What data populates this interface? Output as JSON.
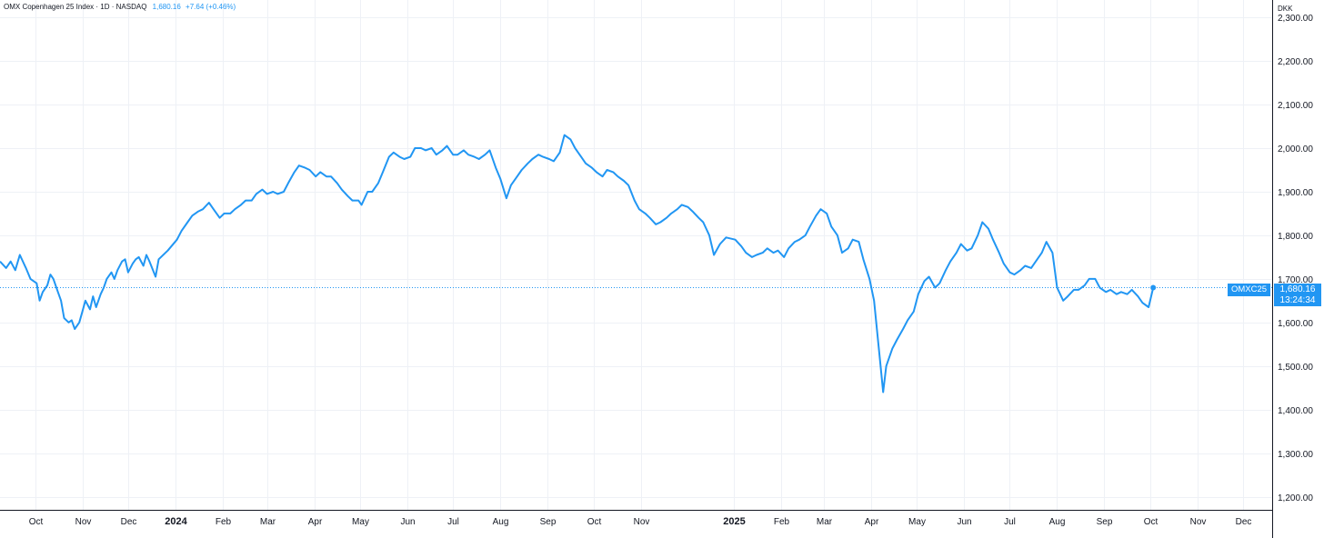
{
  "header": {
    "title": "OMX Copenhagen 25 Index · 1D · NASDAQ",
    "last": "1,680.16",
    "change": "+7.64 (+0.46%)"
  },
  "price_axis": {
    "currency": "DKK"
  },
  "last_tag": {
    "symbol": "OMXC25",
    "price": "1,680.16",
    "countdown": "13:24:34"
  },
  "colors": {
    "line": "#2196f3",
    "grid": "#eef1f6",
    "axis_text": "#131722",
    "tag_bg": "#2196f3"
  },
  "chart_data": {
    "type": "line",
    "title": "OMX Copenhagen 25 Index",
    "ylabel": "DKK",
    "ylim": [
      1170,
      2340
    ],
    "yticks": [
      "1,200.00",
      "1,300.00",
      "1,400.00",
      "1,500.00",
      "1,600.00",
      "1,700.00",
      "1,800.00",
      "1,900.00",
      "2,000.00",
      "2,100.00",
      "2,200.00",
      "2,300.00"
    ],
    "ytick_values": [
      1200,
      1300,
      1400,
      1500,
      1600,
      1700,
      1800,
      1900,
      2000,
      2100,
      2200,
      2300
    ],
    "xrange": [
      "2023-09-08",
      "2025-12-20"
    ],
    "xticks": [
      {
        "date": "2023-10-01",
        "label": "Oct",
        "bold": false
      },
      {
        "date": "2023-11-01",
        "label": "Nov",
        "bold": false
      },
      {
        "date": "2023-12-01",
        "label": "Dec",
        "bold": false
      },
      {
        "date": "2024-01-01",
        "label": "2024",
        "bold": true
      },
      {
        "date": "2024-02-01",
        "label": "Feb",
        "bold": false
      },
      {
        "date": "2024-03-01",
        "label": "Mar",
        "bold": false
      },
      {
        "date": "2024-04-01",
        "label": "Apr",
        "bold": false
      },
      {
        "date": "2024-05-01",
        "label": "May",
        "bold": false
      },
      {
        "date": "2024-06-01",
        "label": "Jun",
        "bold": false
      },
      {
        "date": "2024-07-01",
        "label": "Jul",
        "bold": false
      },
      {
        "date": "2024-08-01",
        "label": "Aug",
        "bold": false
      },
      {
        "date": "2024-09-01",
        "label": "Sep",
        "bold": false
      },
      {
        "date": "2024-10-01",
        "label": "Oct",
        "bold": false
      },
      {
        "date": "2024-11-01",
        "label": "Nov",
        "bold": false
      },
      {
        "date": "2025-01-01",
        "label": "2025",
        "bold": true
      },
      {
        "date": "2025-02-01",
        "label": "Feb",
        "bold": false
      },
      {
        "date": "2025-03-01",
        "label": "Mar",
        "bold": false
      },
      {
        "date": "2025-04-01",
        "label": "Apr",
        "bold": false
      },
      {
        "date": "2025-05-01",
        "label": "May",
        "bold": false
      },
      {
        "date": "2025-06-01",
        "label": "Jun",
        "bold": false
      },
      {
        "date": "2025-07-01",
        "label": "Jul",
        "bold": false
      },
      {
        "date": "2025-08-01",
        "label": "Aug",
        "bold": false
      },
      {
        "date": "2025-09-01",
        "label": "Sep",
        "bold": false
      },
      {
        "date": "2025-10-01",
        "label": "Oct",
        "bold": false
      },
      {
        "date": "2025-11-01",
        "label": "Nov",
        "bold": false
      },
      {
        "date": "2025-12-01",
        "label": "Dec",
        "bold": false
      }
    ],
    "series": [
      {
        "values": [
          [
            "2023-09-08",
            1740
          ],
          [
            "2023-09-12",
            1725
          ],
          [
            "2023-09-15",
            1740
          ],
          [
            "2023-09-18",
            1720
          ],
          [
            "2023-09-21",
            1755
          ],
          [
            "2023-09-25",
            1725
          ],
          [
            "2023-09-28",
            1700
          ],
          [
            "2023-10-02",
            1690
          ],
          [
            "2023-10-04",
            1650
          ],
          [
            "2023-10-06",
            1670
          ],
          [
            "2023-10-09",
            1685
          ],
          [
            "2023-10-11",
            1710
          ],
          [
            "2023-10-13",
            1700
          ],
          [
            "2023-10-16",
            1670
          ],
          [
            "2023-10-18",
            1650
          ],
          [
            "2023-10-20",
            1610
          ],
          [
            "2023-10-23",
            1600
          ],
          [
            "2023-10-25",
            1605
          ],
          [
            "2023-10-27",
            1585
          ],
          [
            "2023-10-30",
            1600
          ],
          [
            "2023-11-01",
            1625
          ],
          [
            "2023-11-03",
            1650
          ],
          [
            "2023-11-06",
            1630
          ],
          [
            "2023-11-08",
            1660
          ],
          [
            "2023-11-10",
            1635
          ],
          [
            "2023-11-13",
            1665
          ],
          [
            "2023-11-15",
            1680
          ],
          [
            "2023-11-17",
            1700
          ],
          [
            "2023-11-20",
            1715
          ],
          [
            "2023-11-22",
            1700
          ],
          [
            "2023-11-24",
            1720
          ],
          [
            "2023-11-27",
            1740
          ],
          [
            "2023-11-29",
            1745
          ],
          [
            "2023-12-01",
            1715
          ],
          [
            "2023-12-04",
            1735
          ],
          [
            "2023-12-06",
            1745
          ],
          [
            "2023-12-08",
            1750
          ],
          [
            "2023-12-11",
            1730
          ],
          [
            "2023-12-13",
            1755
          ],
          [
            "2023-12-15",
            1740
          ],
          [
            "2023-12-19",
            1705
          ],
          [
            "2023-12-21",
            1745
          ],
          [
            "2023-12-27",
            1765
          ],
          [
            "2024-01-02",
            1790
          ],
          [
            "2024-01-05",
            1810
          ],
          [
            "2024-01-09",
            1830
          ],
          [
            "2024-01-12",
            1845
          ],
          [
            "2024-01-16",
            1855
          ],
          [
            "2024-01-19",
            1860
          ],
          [
            "2024-01-23",
            1875
          ],
          [
            "2024-01-26",
            1860
          ],
          [
            "2024-01-30",
            1840
          ],
          [
            "2024-02-02",
            1850
          ],
          [
            "2024-02-06",
            1850
          ],
          [
            "2024-02-09",
            1860
          ],
          [
            "2024-02-13",
            1870
          ],
          [
            "2024-02-16",
            1880
          ],
          [
            "2024-02-20",
            1880
          ],
          [
            "2024-02-23",
            1895
          ],
          [
            "2024-02-27",
            1905
          ],
          [
            "2024-03-01",
            1895
          ],
          [
            "2024-03-05",
            1900
          ],
          [
            "2024-03-08",
            1895
          ],
          [
            "2024-03-12",
            1900
          ],
          [
            "2024-03-15",
            1920
          ],
          [
            "2024-03-19",
            1945
          ],
          [
            "2024-03-22",
            1960
          ],
          [
            "2024-03-26",
            1955
          ],
          [
            "2024-03-29",
            1950
          ],
          [
            "2024-04-02",
            1935
          ],
          [
            "2024-04-05",
            1945
          ],
          [
            "2024-04-09",
            1935
          ],
          [
            "2024-04-12",
            1935
          ],
          [
            "2024-04-16",
            1920
          ],
          [
            "2024-04-19",
            1905
          ],
          [
            "2024-04-23",
            1890
          ],
          [
            "2024-04-26",
            1880
          ],
          [
            "2024-04-30",
            1880
          ],
          [
            "2024-05-02",
            1870
          ],
          [
            "2024-05-06",
            1900
          ],
          [
            "2024-05-09",
            1900
          ],
          [
            "2024-05-13",
            1920
          ],
          [
            "2024-05-16",
            1945
          ],
          [
            "2024-05-20",
            1980
          ],
          [
            "2024-05-23",
            1990
          ],
          [
            "2024-05-27",
            1980
          ],
          [
            "2024-05-30",
            1975
          ],
          [
            "2024-06-03",
            1980
          ],
          [
            "2024-06-06",
            2000
          ],
          [
            "2024-06-10",
            2000
          ],
          [
            "2024-06-13",
            1995
          ],
          [
            "2024-06-17",
            2000
          ],
          [
            "2024-06-20",
            1985
          ],
          [
            "2024-06-24",
            1995
          ],
          [
            "2024-06-27",
            2005
          ],
          [
            "2024-07-01",
            1985
          ],
          [
            "2024-07-04",
            1985
          ],
          [
            "2024-07-08",
            1995
          ],
          [
            "2024-07-11",
            1985
          ],
          [
            "2024-07-15",
            1980
          ],
          [
            "2024-07-18",
            1975
          ],
          [
            "2024-07-22",
            1985
          ],
          [
            "2024-07-25",
            1995
          ],
          [
            "2024-07-29",
            1955
          ],
          [
            "2024-08-01",
            1930
          ],
          [
            "2024-08-05",
            1885
          ],
          [
            "2024-08-08",
            1915
          ],
          [
            "2024-08-12",
            1935
          ],
          [
            "2024-08-15",
            1950
          ],
          [
            "2024-08-19",
            1965
          ],
          [
            "2024-08-22",
            1975
          ],
          [
            "2024-08-26",
            1985
          ],
          [
            "2024-08-29",
            1980
          ],
          [
            "2024-09-02",
            1975
          ],
          [
            "2024-09-05",
            1970
          ],
          [
            "2024-09-09",
            1990
          ],
          [
            "2024-09-12",
            2030
          ],
          [
            "2024-09-16",
            2020
          ],
          [
            "2024-09-19",
            2000
          ],
          [
            "2024-09-23",
            1980
          ],
          [
            "2024-09-26",
            1965
          ],
          [
            "2024-09-30",
            1955
          ],
          [
            "2024-10-03",
            1945
          ],
          [
            "2024-10-07",
            1935
          ],
          [
            "2024-10-10",
            1950
          ],
          [
            "2024-10-14",
            1945
          ],
          [
            "2024-10-17",
            1935
          ],
          [
            "2024-10-21",
            1925
          ],
          [
            "2024-10-24",
            1915
          ],
          [
            "2024-10-28",
            1880
          ],
          [
            "2024-10-31",
            1860
          ],
          [
            "2024-11-04",
            1850
          ],
          [
            "2024-11-07",
            1840
          ],
          [
            "2024-11-11",
            1825
          ],
          [
            "2024-11-14",
            1830
          ],
          [
            "2024-11-18",
            1840
          ],
          [
            "2024-11-21",
            1850
          ],
          [
            "2024-11-25",
            1860
          ],
          [
            "2024-11-28",
            1870
          ],
          [
            "2024-12-02",
            1865
          ],
          [
            "2024-12-05",
            1855
          ],
          [
            "2024-12-09",
            1840
          ],
          [
            "2024-12-12",
            1830
          ],
          [
            "2024-12-16",
            1800
          ],
          [
            "2024-12-19",
            1755
          ],
          [
            "2024-12-23",
            1780
          ],
          [
            "2024-12-27",
            1795
          ],
          [
            "2025-01-02",
            1790
          ],
          [
            "2025-01-06",
            1775
          ],
          [
            "2025-01-09",
            1760
          ],
          [
            "2025-01-13",
            1750
          ],
          [
            "2025-01-16",
            1755
          ],
          [
            "2025-01-20",
            1760
          ],
          [
            "2025-01-23",
            1770
          ],
          [
            "2025-01-27",
            1760
          ],
          [
            "2025-01-30",
            1765
          ],
          [
            "2025-02-03",
            1750
          ],
          [
            "2025-02-06",
            1770
          ],
          [
            "2025-02-10",
            1785
          ],
          [
            "2025-02-13",
            1790
          ],
          [
            "2025-02-17",
            1800
          ],
          [
            "2025-02-20",
            1820
          ],
          [
            "2025-02-24",
            1845
          ],
          [
            "2025-02-27",
            1860
          ],
          [
            "2025-03-03",
            1850
          ],
          [
            "2025-03-06",
            1820
          ],
          [
            "2025-03-10",
            1800
          ],
          [
            "2025-03-13",
            1760
          ],
          [
            "2025-03-17",
            1770
          ],
          [
            "2025-03-20",
            1790
          ],
          [
            "2025-03-24",
            1785
          ],
          [
            "2025-03-27",
            1745
          ],
          [
            "2025-03-31",
            1700
          ],
          [
            "2025-04-03",
            1650
          ],
          [
            "2025-04-07",
            1510
          ],
          [
            "2025-04-09",
            1440
          ],
          [
            "2025-04-11",
            1500
          ],
          [
            "2025-04-15",
            1540
          ],
          [
            "2025-04-18",
            1560
          ],
          [
            "2025-04-22",
            1585
          ],
          [
            "2025-04-25",
            1605
          ],
          [
            "2025-04-29",
            1625
          ],
          [
            "2025-05-02",
            1665
          ],
          [
            "2025-05-06",
            1695
          ],
          [
            "2025-05-09",
            1705
          ],
          [
            "2025-05-13",
            1680
          ],
          [
            "2025-05-16",
            1690
          ],
          [
            "2025-05-20",
            1720
          ],
          [
            "2025-05-23",
            1740
          ],
          [
            "2025-05-27",
            1760
          ],
          [
            "2025-05-30",
            1780
          ],
          [
            "2025-06-03",
            1765
          ],
          [
            "2025-06-06",
            1770
          ],
          [
            "2025-06-10",
            1800
          ],
          [
            "2025-06-13",
            1830
          ],
          [
            "2025-06-17",
            1815
          ],
          [
            "2025-06-20",
            1790
          ],
          [
            "2025-06-24",
            1760
          ],
          [
            "2025-06-27",
            1735
          ],
          [
            "2025-07-01",
            1715
          ],
          [
            "2025-07-04",
            1710
          ],
          [
            "2025-07-08",
            1720
          ],
          [
            "2025-07-11",
            1730
          ],
          [
            "2025-07-15",
            1725
          ],
          [
            "2025-07-18",
            1740
          ],
          [
            "2025-07-22",
            1760
          ],
          [
            "2025-07-25",
            1785
          ],
          [
            "2025-07-29",
            1760
          ],
          [
            "2025-08-01",
            1680
          ],
          [
            "2025-08-05",
            1650
          ],
          [
            "2025-08-08",
            1660
          ],
          [
            "2025-08-12",
            1675
          ],
          [
            "2025-08-15",
            1675
          ],
          [
            "2025-08-19",
            1685
          ],
          [
            "2025-08-22",
            1700
          ],
          [
            "2025-08-26",
            1700
          ],
          [
            "2025-08-29",
            1680
          ],
          [
            "2025-09-02",
            1670
          ],
          [
            "2025-09-05",
            1675
          ],
          [
            "2025-09-09",
            1665
          ],
          [
            "2025-09-12",
            1670
          ],
          [
            "2025-09-16",
            1665
          ],
          [
            "2025-09-19",
            1675
          ],
          [
            "2025-09-23",
            1660
          ],
          [
            "2025-09-26",
            1645
          ],
          [
            "2025-09-30",
            1635
          ],
          [
            "2025-10-03",
            1680
          ]
        ]
      }
    ]
  }
}
